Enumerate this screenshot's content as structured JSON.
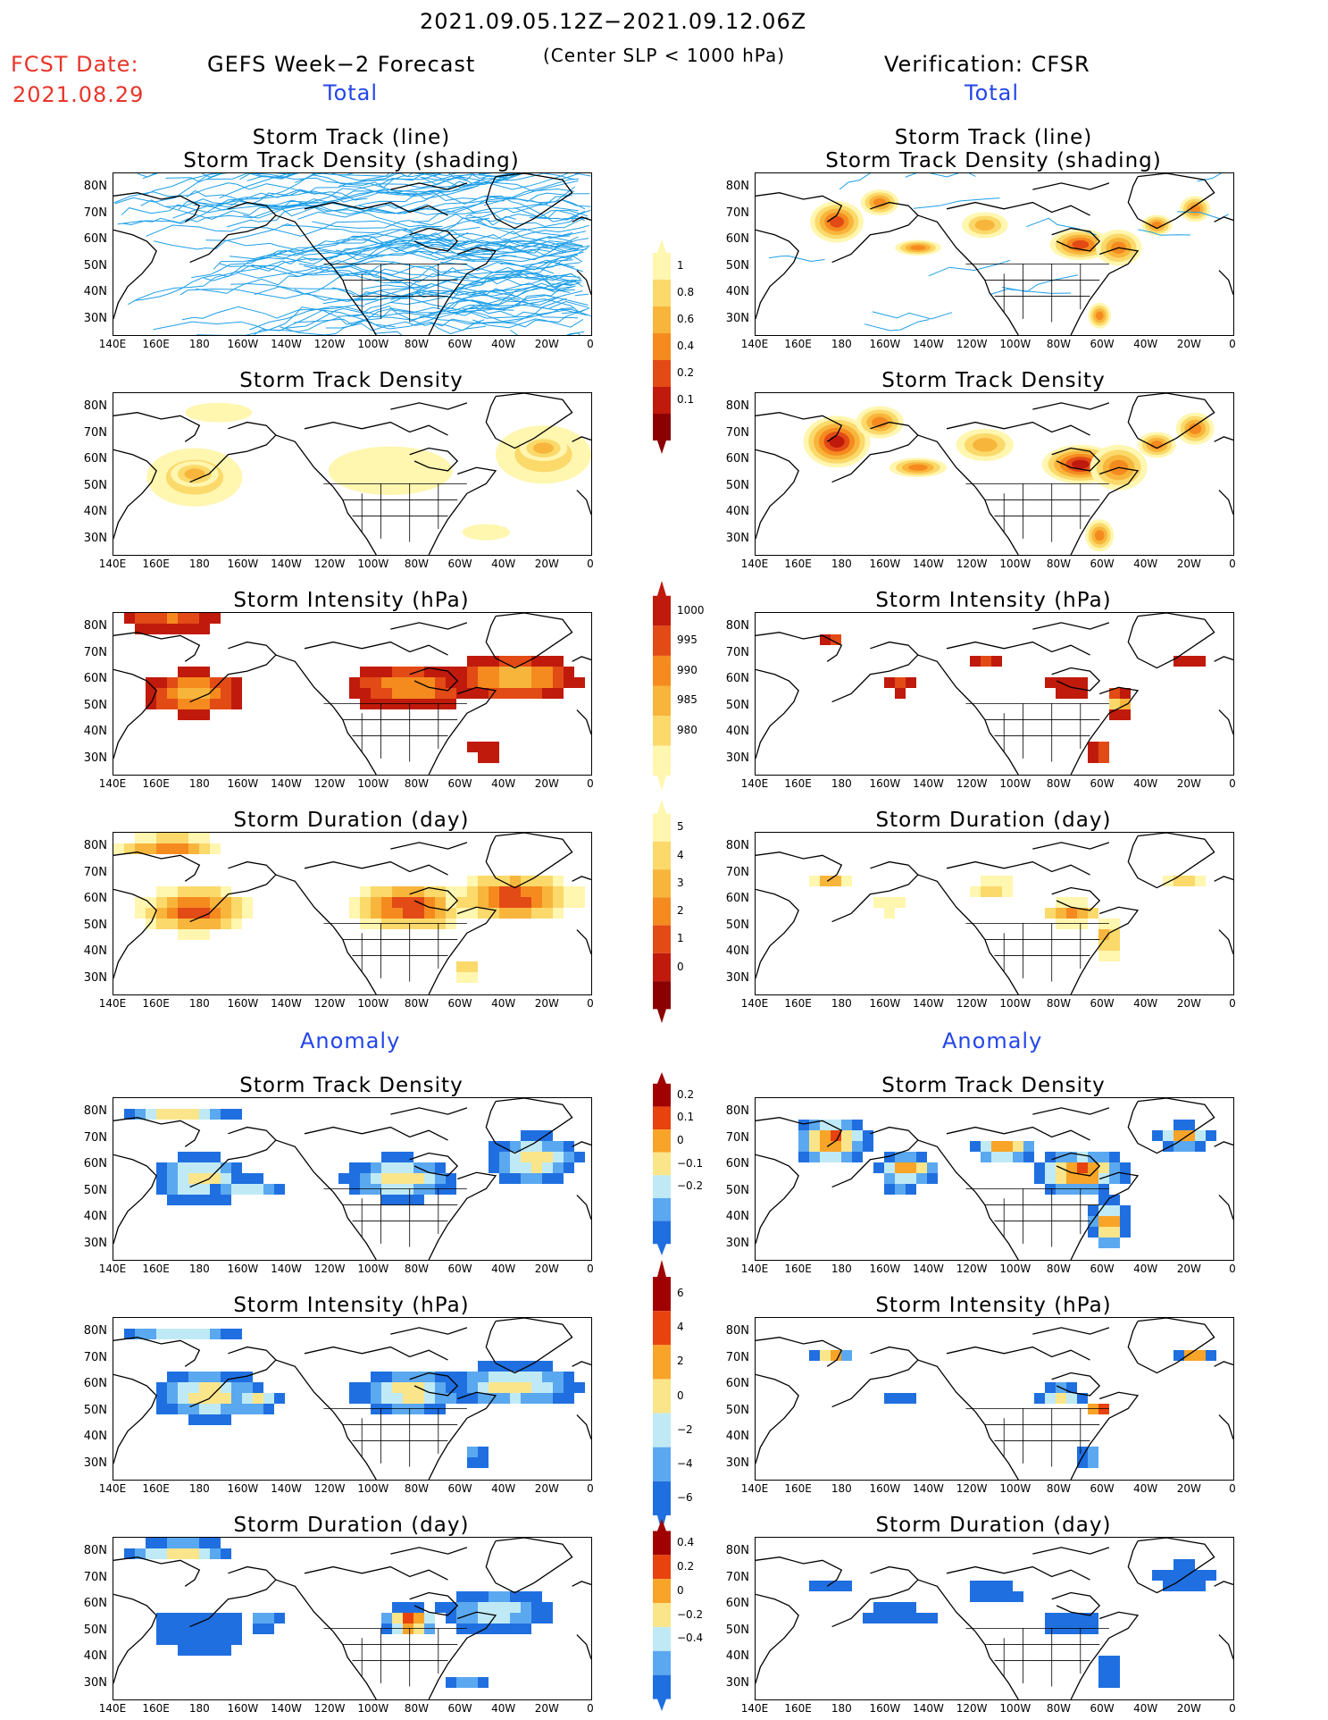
{
  "header": {
    "date_range": "2021.09.05.12Z−2021.09.12.06Z",
    "fcst_label": "FCST Date:",
    "fcst_date": "2021.08.29",
    "forecast_title": "GEFS Week−2 Forecast",
    "slp_note": "(Center SLP < 1000 hPa)",
    "verification": "Verification: CFSR",
    "total_label_left": "Total",
    "total_label_right": "Total",
    "anomaly_label_left": "Anomaly",
    "anomaly_label_right": "Anomaly"
  },
  "axes": {
    "lat_labels": [
      "80N",
      "70N",
      "60N",
      "50N",
      "40N",
      "30N"
    ],
    "lon_labels": [
      "140E",
      "160E",
      "180",
      "160W",
      "140W",
      "120W",
      "100W",
      "80W",
      "60W",
      "40W",
      "20W",
      "0"
    ]
  },
  "panel_titles": {
    "track_line": "Storm Track (line)",
    "track_density_shading": "Storm Track Density (shading)",
    "track_density": "Storm Track Density",
    "intensity": "Storm Intensity (hPa)",
    "duration": "Storm Duration (day)"
  },
  "colorbars": {
    "density_total": [
      "1",
      "0.8",
      "0.6",
      "0.4",
      "0.2",
      "0.1"
    ],
    "intensity_total": [
      "1000",
      "995",
      "990",
      "985",
      "980"
    ],
    "duration_total": [
      "5",
      "4",
      "3",
      "2",
      "1",
      "0"
    ],
    "density_anomaly": [
      "0.2",
      "0.1",
      "0",
      "−0.1",
      "−0.2"
    ],
    "intensity_anomaly": [
      "6",
      "4",
      "2",
      "0",
      "−2",
      "−4",
      "−6"
    ],
    "duration_anomaly": [
      "0.4",
      "0.2",
      "0",
      "−0.2",
      "−0.4"
    ]
  },
  "colors": {
    "warm_scale": [
      "#fff6b0",
      "#fbd96a",
      "#f8b53c",
      "#f58a1f",
      "#e24a16",
      "#c01a0c",
      "#8b0000"
    ],
    "anom_scale": [
      "#1f6fe0",
      "#5aa8f0",
      "#bfeaf5",
      "#fbe58a",
      "#f8a428",
      "#e8420f",
      "#a00000"
    ],
    "track_line": "#1e9fe8",
    "red_text": "#e8352a",
    "blue_text": "#2446e8"
  }
}
